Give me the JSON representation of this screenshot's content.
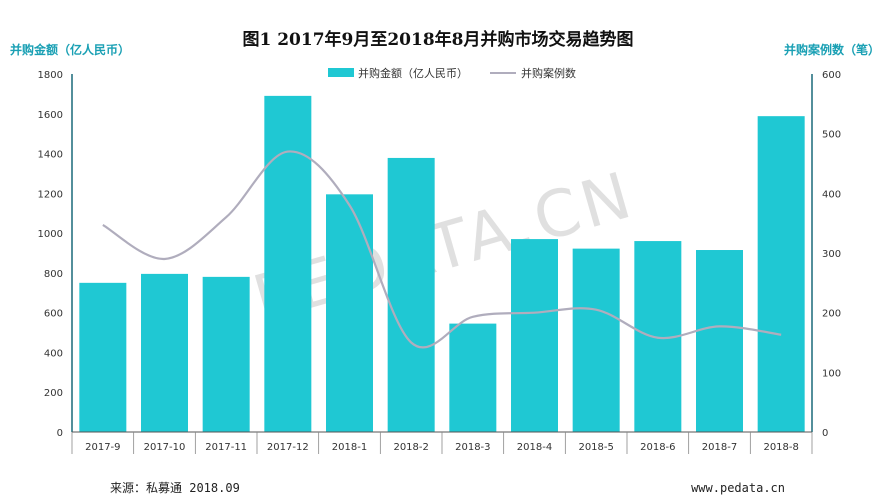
{
  "chart_data": {
    "type": "bar",
    "title": "图1   2017年9月至2018年8月并购市场交易趋势图",
    "ylabel": "并购金额（亿人民币）",
    "y2label": "并购案例数（笔）",
    "categories": [
      "2017-9",
      "2017-10",
      "2017-11",
      "2017-12",
      "2018-1",
      "2018-2",
      "2018-3",
      "2018-4",
      "2018-5",
      "2018-6",
      "2018-7",
      "2018-8"
    ],
    "ylim": [
      0,
      1800
    ],
    "y2lim": [
      0,
      600
    ],
    "yticks": [
      0,
      200,
      400,
      600,
      800,
      1000,
      1200,
      1400,
      1600,
      1800
    ],
    "y2ticks": [
      0,
      100,
      200,
      300,
      400,
      500,
      600
    ],
    "series": [
      {
        "name": "并购金额（亿人民币）",
        "type": "bar",
        "axis": "left",
        "color": "#1fc8d3",
        "values": [
          750,
          795,
          780,
          1690,
          1195,
          1378,
          545,
          970,
          922,
          960,
          915,
          1588
        ]
      },
      {
        "name": "并购案例数",
        "type": "line",
        "axis": "right",
        "color": "#b0adbd",
        "values": [
          347,
          290,
          360,
          470,
          380,
          150,
          193,
          200,
          205,
          158,
          177,
          163
        ]
      }
    ],
    "legend": "top-center",
    "grid": false
  },
  "watermark": "PEDATA.CN",
  "footer": {
    "source": "来源：私募通 2018.09",
    "site": "www.pedata.cn"
  },
  "colors": {
    "bar": "#1fc8d3",
    "line": "#b0adbd",
    "axis": "#1a6a7a",
    "axis_title": "#1aa0b4"
  }
}
